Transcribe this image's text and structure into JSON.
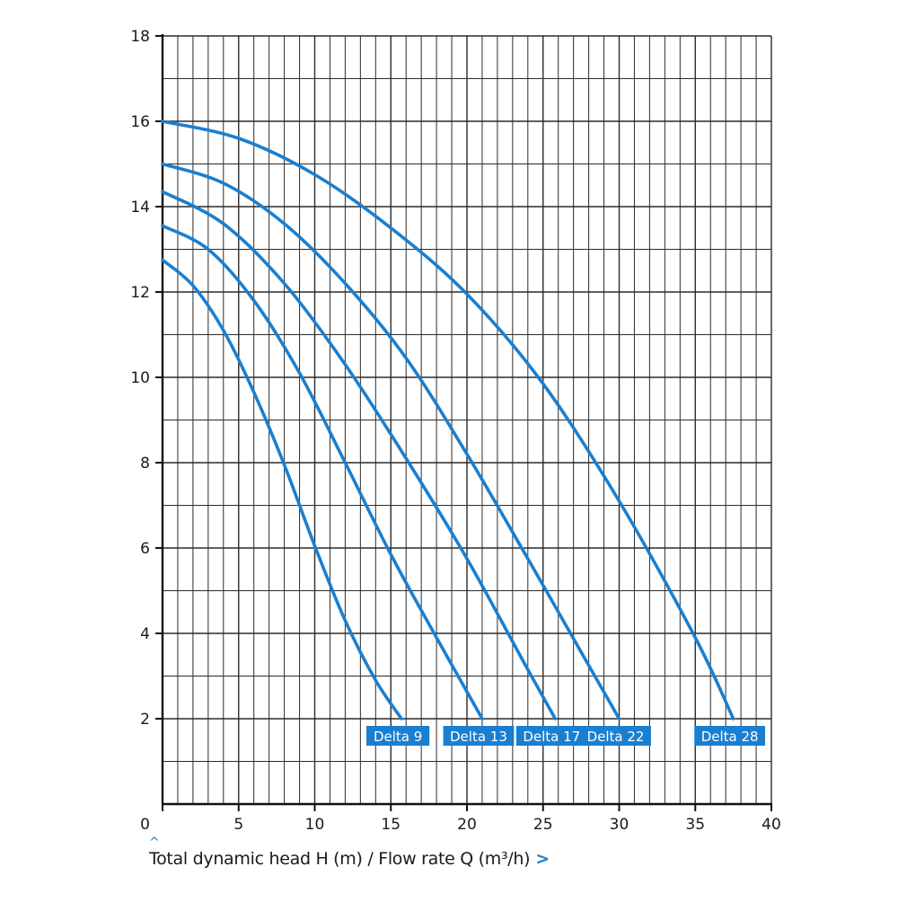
{
  "chart_data": {
    "type": "line",
    "xlabel": "Total dynamic head H (m) / Flow rate Q (m³/h)",
    "xlim": [
      0,
      40
    ],
    "ylim": [
      0,
      18
    ],
    "xticks": [
      "0",
      "5",
      "10",
      "15",
      "20",
      "25",
      "30",
      "35",
      "40"
    ],
    "yticks": [
      "2",
      "4",
      "6",
      "8",
      "10",
      "12",
      "14",
      "16",
      "18"
    ],
    "grid": true,
    "legend": "labels at curve ends",
    "series": [
      {
        "name": "Delta 9",
        "x": [
          0,
          2,
          4,
          6,
          8,
          10,
          12,
          14,
          15.7
        ],
        "y": [
          12.75,
          12.15,
          11.1,
          9.65,
          7.95,
          6.05,
          4.3,
          2.9,
          2.0
        ]
      },
      {
        "name": "Delta 13",
        "x": [
          0,
          3,
          6,
          9,
          12,
          15,
          18,
          21
        ],
        "y": [
          13.55,
          13.0,
          11.8,
          10.1,
          8.0,
          5.85,
          3.9,
          2.0
        ]
      },
      {
        "name": "Delta 17",
        "x": [
          0,
          4,
          8,
          12,
          16,
          20,
          24,
          25.8
        ],
        "y": [
          14.35,
          13.6,
          12.2,
          10.3,
          8.1,
          5.75,
          3.15,
          2.0
        ]
      },
      {
        "name": "Delta 22",
        "x": [
          0,
          4,
          8,
          12,
          16,
          20,
          24,
          28,
          30
        ],
        "y": [
          15.0,
          14.55,
          13.6,
          12.2,
          10.45,
          8.2,
          5.75,
          3.25,
          2.0
        ]
      },
      {
        "name": "Delta 28",
        "x": [
          0,
          5,
          10,
          15,
          20,
          25,
          30,
          35,
          37.5
        ],
        "y": [
          16.0,
          15.6,
          14.75,
          13.5,
          11.95,
          9.85,
          7.1,
          3.9,
          2.0
        ]
      }
    ]
  },
  "colors": {
    "curve": "#1a7fd0",
    "label_bg": "#1a7fd0",
    "label_text": "#ffffff",
    "grid": "#2b2b2b",
    "chevron": "#1a7fd0"
  },
  "icons": {
    "up": "caret-up-icon",
    "right": "chevron-right-icon"
  },
  "chevron_glyph": ">",
  "caret_glyph": "^"
}
